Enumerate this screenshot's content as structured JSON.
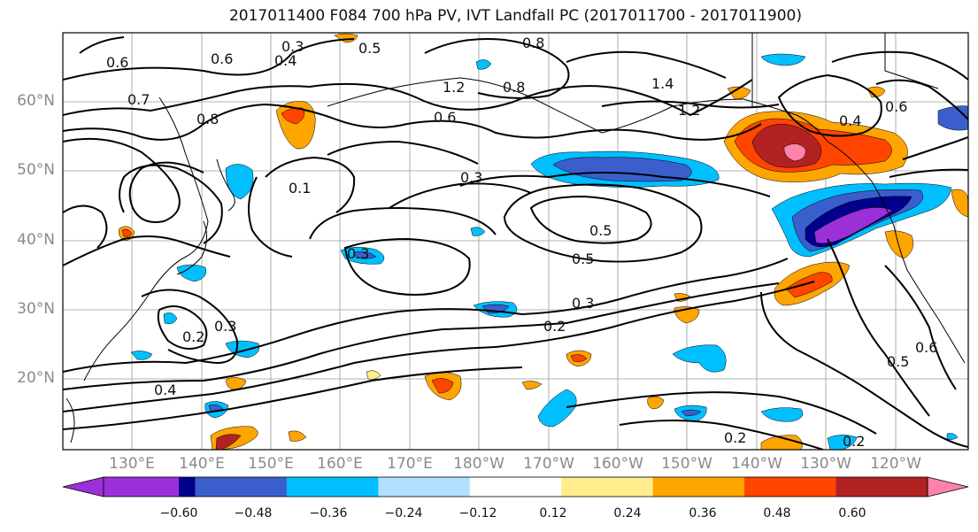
{
  "title": "2017011400 F084 700 hPa PV, IVT Landfall PC (2017011700 - 2017011900)",
  "latitude_labels": [
    "60°N",
    "50°N",
    "40°N",
    "30°N",
    "20°N"
  ],
  "longitude_labels": [
    "130°E",
    "140°E",
    "150°E",
    "160°E",
    "170°E",
    "180°W",
    "170°W",
    "160°W",
    "150°W",
    "140°W",
    "130°W",
    "120°W"
  ],
  "colorbar": {
    "tick_labels": [
      "−0.60",
      "−0.48",
      "−0.36",
      "−0.24",
      "−0.12",
      "0.12",
      "0.24",
      "0.36",
      "0.48",
      "0.60"
    ],
    "colors": [
      "#9b30d9",
      "#00008b",
      "#3a5fcd",
      "#00bfff",
      "#b0e2ff",
      "#ffffff",
      "#ffec8b",
      "#ffa500",
      "#ff4500",
      "#b22222",
      "#ff82ab"
    ]
  },
  "contour_labels": [
    "0.3",
    "0.6",
    "0.4",
    "0.6",
    "0.5",
    "0.8",
    "1.2",
    "1.4",
    "0.8",
    "0.6",
    "0.7",
    "0.8",
    "0.3",
    "0.1",
    "0.3",
    "0.5",
    "0.5",
    "0.3",
    "0.2",
    "0.2",
    "0.3",
    "0.4",
    "0.2",
    "0.2",
    "0.6",
    "0.5",
    "1.2",
    "0.4",
    "0.6"
  ]
}
